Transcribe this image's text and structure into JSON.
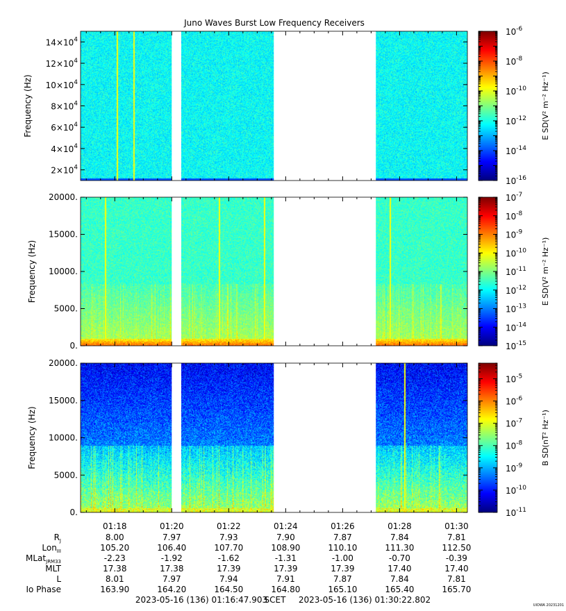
{
  "title": "Juno Waves Burst Low Frequency Receivers",
  "watermark": "UIOWA 20231201",
  "chart_data": [
    {
      "type": "heatmap",
      "ylabel": "Frequency (Hz)",
      "ylim": [
        10000,
        150000
      ],
      "yticks": [
        20000,
        40000,
        60000,
        80000,
        100000,
        120000,
        140000
      ],
      "ytick_labels": [
        [
          "2",
          "4"
        ],
        [
          "4",
          "4"
        ],
        [
          "6",
          "4"
        ],
        [
          "8",
          "4"
        ],
        [
          "10",
          "4"
        ],
        [
          "12",
          "4"
        ],
        [
          "14",
          "4"
        ]
      ],
      "colorbar": {
        "label": "E SD(V² m⁻² Hz⁻¹)",
        "log_min": -16,
        "log_max": -6,
        "ticks": [
          -16,
          -14,
          -12,
          -10,
          -8,
          -6
        ],
        "tick_labels": [
          [
            "10",
            "-16"
          ],
          [
            "10",
            "-14"
          ],
          [
            "10",
            "-12"
          ],
          [
            "10",
            "-10"
          ],
          [
            "10",
            "-8"
          ],
          [
            "10",
            "-6"
          ]
        ]
      },
      "style": "e_high",
      "bright_lines": [
        "01:18:05",
        "01:18:40"
      ]
    },
    {
      "type": "heatmap",
      "ylabel": "Frequency (Hz)",
      "ylim": [
        0,
        20000
      ],
      "yticks": [
        0,
        5000,
        10000,
        15000,
        20000
      ],
      "ytick_labels": [
        "0.",
        "5000.",
        "10000.",
        "15000.",
        "20000."
      ],
      "colorbar": {
        "label": "E SD(V² m⁻² Hz⁻¹)",
        "log_min": -15,
        "log_max": -7,
        "ticks": [
          -15,
          -14,
          -13,
          -12,
          -11,
          -10,
          -9,
          -8,
          -7
        ],
        "tick_labels": [
          [
            "10",
            "-15"
          ],
          [
            "10",
            "-14"
          ],
          [
            "10",
            "-13"
          ],
          [
            "10",
            "-12"
          ],
          [
            "10",
            "-11"
          ],
          [
            "10",
            "-10"
          ],
          [
            "10",
            "-9"
          ],
          [
            "10",
            "-8"
          ],
          [
            "10",
            "-7"
          ]
        ]
      },
      "style": "e_low",
      "bright_lines": [
        "01:17:40",
        "01:21:40",
        "01:23:15",
        "01:27:40"
      ]
    },
    {
      "type": "heatmap",
      "ylabel": "Frequency (Hz)",
      "ylim": [
        0,
        20000
      ],
      "yticks": [
        0,
        5000,
        10000,
        15000,
        20000
      ],
      "ytick_labels": [
        "0.",
        "5000.",
        "10000.",
        "15000.",
        "20000."
      ],
      "colorbar": {
        "label": "B SD(nT² Hz⁻¹)",
        "log_min": -11,
        "log_max": -4.3,
        "ticks": [
          -11,
          -10,
          -9,
          -8,
          -7,
          -6,
          -5
        ],
        "tick_labels": [
          [
            "10",
            "-11"
          ],
          [
            "10",
            "-10"
          ],
          [
            "10",
            "-9"
          ],
          [
            "10",
            "-8"
          ],
          [
            "10",
            "-7"
          ],
          [
            "10",
            "-6"
          ],
          [
            "10",
            "-5"
          ]
        ]
      },
      "style": "b_low",
      "bright_lines": [
        "01:28:10"
      ]
    }
  ],
  "time_axis": {
    "start": "01:16:47.903",
    "end": "01:30:22.802",
    "tick_labels": [
      "01:18",
      "01:20",
      "01:22",
      "01:24",
      "01:26",
      "01:28",
      "01:30"
    ],
    "data_intervals": [
      [
        "01:16:47.903",
        "01:20:00"
      ],
      [
        "01:20:20",
        "01:23:35"
      ],
      [
        "01:27:10",
        "01:30:22.802"
      ]
    ]
  },
  "ephemeris": {
    "rows": [
      {
        "label": "R",
        "sub": "J",
        "values": [
          "8.00",
          "7.97",
          "7.93",
          "7.90",
          "7.87",
          "7.84",
          "7.81"
        ]
      },
      {
        "label": "Lon",
        "sub": "III",
        "values": [
          "105.20",
          "106.40",
          "107.70",
          "108.90",
          "110.10",
          "111.30",
          "112.50"
        ]
      },
      {
        "label": "MLat",
        "sub": "JRM33",
        "values": [
          "-2.23",
          "-1.92",
          "-1.62",
          "-1.31",
          "-1.00",
          "-0.70",
          "-0.39"
        ]
      },
      {
        "label": "MLT",
        "sub": "",
        "values": [
          "17.38",
          "17.38",
          "17.39",
          "17.39",
          "17.39",
          "17.40",
          "17.40"
        ]
      },
      {
        "label": "L",
        "sub": "",
        "values": [
          "8.01",
          "7.97",
          "7.94",
          "7.91",
          "7.87",
          "7.84",
          "7.81"
        ]
      },
      {
        "label": "Io Phase",
        "sub": "",
        "values": [
          "163.90",
          "164.20",
          "164.50",
          "164.80",
          "165.10",
          "165.40",
          "165.70"
        ]
      }
    ]
  },
  "time_range": {
    "start": "2023-05-16 (136) 01:16:47.903",
    "mid": "SCET",
    "end": "2023-05-16 (136) 01:30:22.802"
  }
}
